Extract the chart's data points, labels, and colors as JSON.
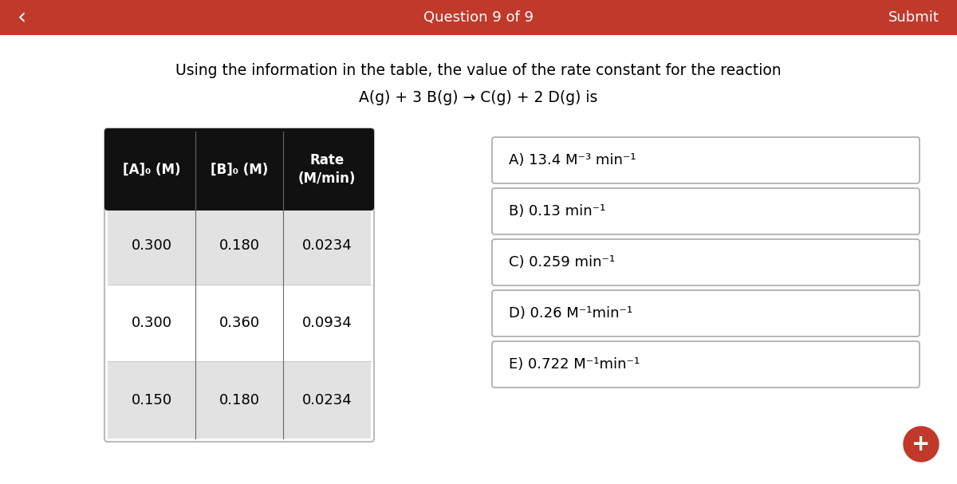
{
  "title_line1": "Using the information in the table, the value of the rate constant for the reaction",
  "title_line2": "A(g) + 3 B(g) → C(g) + 2 D(g) is",
  "header_bg": "#111111",
  "header_text_color": "#ffffff",
  "table_col_headers": [
    "[A]₀ (M)",
    "[B]₀ (M)",
    "Rate\n(M/min)"
  ],
  "table_data": [
    [
      "0.300",
      "0.180",
      "0.0234"
    ],
    [
      "0.300",
      "0.360",
      "0.0934"
    ],
    [
      "0.150",
      "0.180",
      "0.0234"
    ]
  ],
  "row_bg_gray": "#e2e2e2",
  "row_bg_white": "#ffffff",
  "choices": [
    "A) 13.4 M⁻³ min⁻¹",
    "B) 0.13 min⁻¹",
    "C) 0.259 min⁻¹",
    "D) 0.26 M⁻¹min⁻¹",
    "E) 0.722 M⁻¹min⁻¹"
  ],
  "nav_bar_color": "#c0392b",
  "nav_text": "Question 9 of 9",
  "nav_submit": "Submit",
  "nav_back": "‹",
  "bg_color": "#ffffff",
  "choice_border_color": "#aaaaaa",
  "plus_button_color": "#c0392b"
}
